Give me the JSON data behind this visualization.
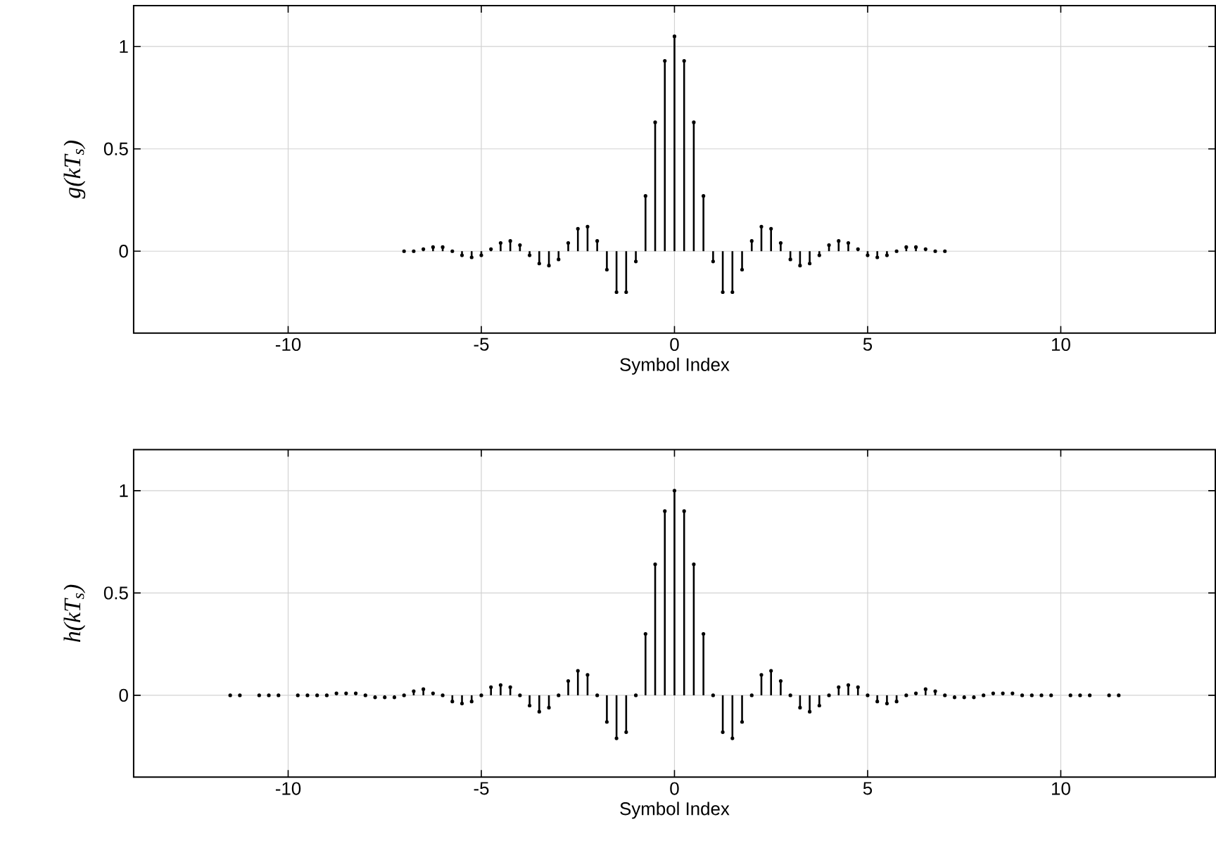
{
  "chart_data": [
    {
      "type": "lollipop",
      "xlabel": "Symbol Index",
      "ylabel": "g(kT$_{s}$)",
      "xlim": [
        -14,
        14
      ],
      "ylim": [
        -0.4,
        1.2
      ],
      "xticks": [
        -10,
        -5,
        0,
        5,
        10
      ],
      "yticks": [
        0,
        0.5,
        1
      ],
      "grid": true,
      "marker": "circle",
      "x": [
        -7,
        -6.75,
        -6.5,
        -6.25,
        -6,
        -5.75,
        -5.5,
        -5.25,
        -5,
        -4.75,
        -4.5,
        -4.25,
        -4,
        -3.75,
        -3.5,
        -3.25,
        -3,
        -2.75,
        -2.5,
        -2.25,
        -2,
        -1.75,
        -1.5,
        -1.25,
        -1,
        -0.75,
        -0.5,
        -0.25,
        0,
        0.25,
        0.5,
        0.75,
        1,
        1.25,
        1.5,
        1.75,
        2,
        2.25,
        2.5,
        2.75,
        3,
        3.25,
        3.5,
        3.75,
        4,
        4.25,
        4.5,
        4.75,
        5,
        5.25,
        5.5,
        5.75,
        6,
        6.25,
        6.5,
        6.75,
        7
      ],
      "series": [
        {
          "color": "#000000",
          "values": [
            0,
            0,
            0.01,
            0.02,
            0.02,
            0,
            -0.02,
            -0.03,
            -0.02,
            0.01,
            0.04,
            0.05,
            0.03,
            -0.02,
            -0.06,
            -0.07,
            -0.04,
            0.04,
            0.11,
            0.12,
            0.05,
            -0.09,
            -0.2,
            -0.2,
            -0.05,
            0.27,
            0.63,
            0.93,
            1.05,
            0.93,
            0.63,
            0.27,
            -0.05,
            -0.2,
            -0.2,
            -0.09,
            0.05,
            0.12,
            0.11,
            0.04,
            -0.04,
            -0.07,
            -0.06,
            -0.02,
            0.03,
            0.05,
            0.04,
            0.01,
            -0.02,
            -0.03,
            -0.02,
            0,
            0.02,
            0.02,
            0.01,
            0,
            0
          ]
        }
      ]
    },
    {
      "type": "lollipop",
      "xlabel": "Symbol Index",
      "ylabel": "h(kT$_{s}$)",
      "xlim": [
        -14,
        14
      ],
      "ylim": [
        -0.4,
        1.2
      ],
      "xticks": [
        -10,
        -5,
        0,
        5,
        10
      ],
      "yticks": [
        0,
        0.5,
        1
      ],
      "grid": true,
      "marker": "circle",
      "x": [
        -11.5,
        -11.25,
        -11,
        -10.75,
        -10.5,
        -10.25,
        -10,
        -9.75,
        -9.5,
        -9.25,
        -9,
        -8.75,
        -8.5,
        -8.25,
        -8,
        -7.75,
        -7.5,
        -7.25,
        -7,
        -6.75,
        -6.5,
        -6.25,
        -6,
        -5.75,
        -5.5,
        -5.25,
        -5,
        -4.75,
        -4.5,
        -4.25,
        -4,
        -3.75,
        -3.5,
        -3.25,
        -3,
        -2.75,
        -2.5,
        -2.25,
        -2,
        -1.75,
        -1.5,
        -1.25,
        -1,
        -0.75,
        -0.5,
        -0.25,
        0,
        0.25,
        0.5,
        0.75,
        1,
        1.25,
        1.5,
        1.75,
        2,
        2.25,
        2.5,
        2.75,
        3,
        3.25,
        3.5,
        3.75,
        4,
        4.25,
        4.5,
        4.75,
        5,
        5.25,
        5.5,
        5.75,
        6,
        6.25,
        6.5,
        6.75,
        7,
        7.25,
        7.5,
        7.75,
        8,
        8.25,
        8.5,
        8.75,
        9,
        9.25,
        9.5,
        9.75,
        10,
        10.25,
        10.5,
        10.75,
        11,
        11.25,
        11.5
      ],
      "series": [
        {
          "color": "#000000",
          "values": [
            0,
            0,
            null,
            0,
            0,
            0,
            null,
            0,
            0,
            0,
            0,
            0.01,
            0.01,
            0.01,
            0,
            -0.01,
            -0.01,
            -0.01,
            0,
            0.02,
            0.03,
            0.01,
            0,
            -0.03,
            -0.04,
            -0.03,
            0,
            0.04,
            0.05,
            0.04,
            0,
            -0.05,
            -0.08,
            -0.06,
            0,
            0.07,
            0.12,
            0.1,
            0,
            -0.13,
            -0.21,
            -0.18,
            0,
            0.3,
            0.64,
            0.9,
            1.0,
            0.9,
            0.64,
            0.3,
            0,
            -0.18,
            -0.21,
            -0.13,
            0,
            0.1,
            0.12,
            0.07,
            0,
            -0.06,
            -0.08,
            -0.05,
            0,
            0.04,
            0.05,
            0.04,
            0,
            -0.03,
            -0.04,
            -0.03,
            0,
            0.01,
            0.03,
            0.02,
            0,
            -0.01,
            -0.01,
            -0.01,
            0,
            0.01,
            0.01,
            0.01,
            0,
            0,
            0,
            0,
            null,
            0,
            0,
            0,
            null,
            0,
            0
          ]
        }
      ]
    }
  ]
}
